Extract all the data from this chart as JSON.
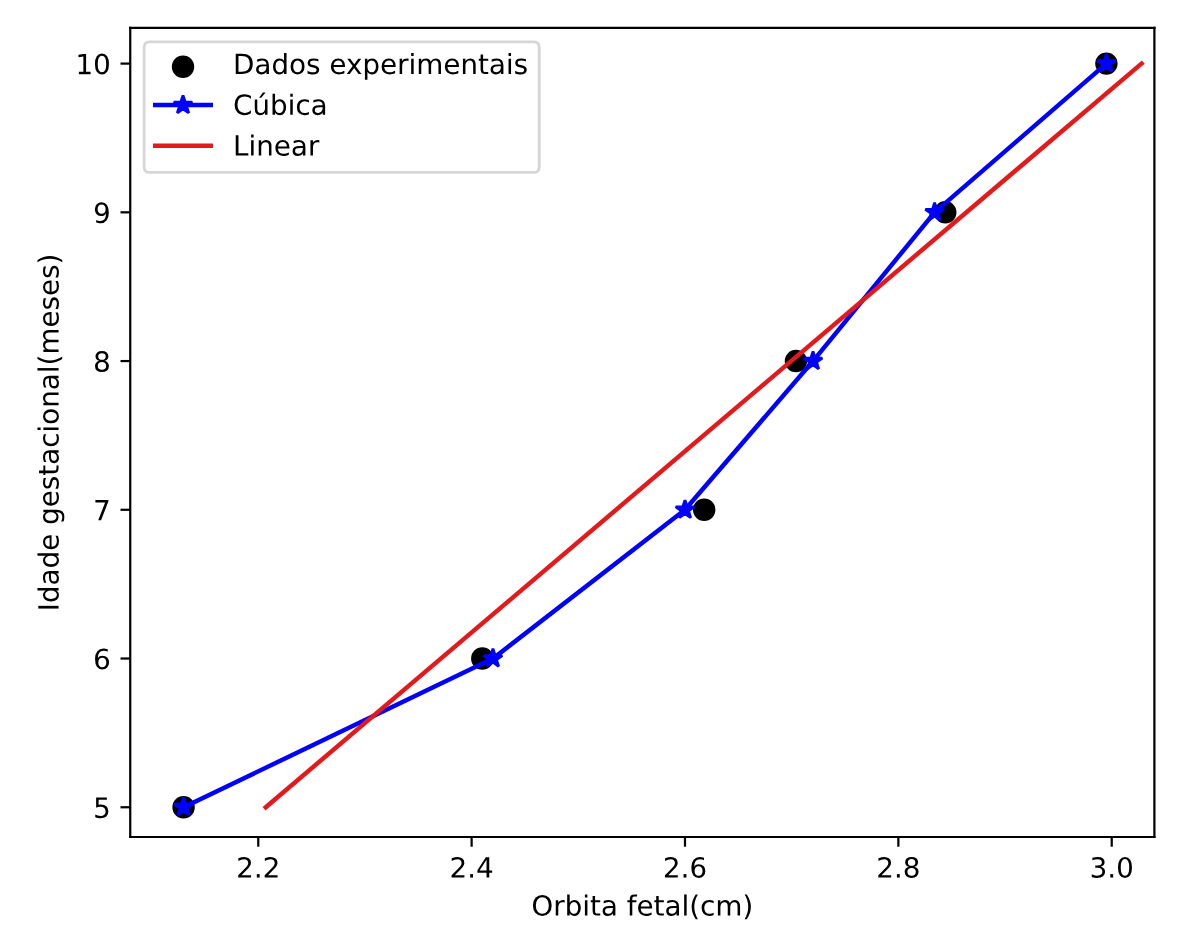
{
  "chart_data": {
    "type": "scatter",
    "xlabel": "Orbita fetal(cm)",
    "ylabel": "Idade gestacional(meses)",
    "xlim": [
      2.08,
      3.04
    ],
    "ylim": [
      4.8,
      10.24
    ],
    "xticks": [
      2.2,
      2.4,
      2.6,
      2.8,
      {
        "value": 3.0,
        "label": "3.0"
      }
    ],
    "yticks": [
      5,
      6,
      7,
      8,
      9,
      10
    ],
    "legend": "top left",
    "grid": false,
    "series": [
      {
        "name": "Dados experimentais",
        "marker": "circle",
        "color": "#000000",
        "x": [
          2.13,
          2.41,
          2.618,
          2.704,
          2.844,
          2.995
        ],
        "values": [
          5,
          6,
          7,
          8,
          9,
          10
        ]
      },
      {
        "name": "Cúbica",
        "type": "line",
        "marker": "star",
        "color": "#0000ff",
        "x": [
          2.13,
          2.42,
          2.6,
          2.72,
          2.834,
          2.995
        ],
        "values": [
          5,
          6,
          7,
          8,
          9,
          10
        ]
      },
      {
        "name": "Linear",
        "type": "line",
        "marker": "none",
        "color": "#e31a1c",
        "x": [
          2.207,
          3.028
        ],
        "values": [
          5,
          10
        ]
      }
    ]
  }
}
